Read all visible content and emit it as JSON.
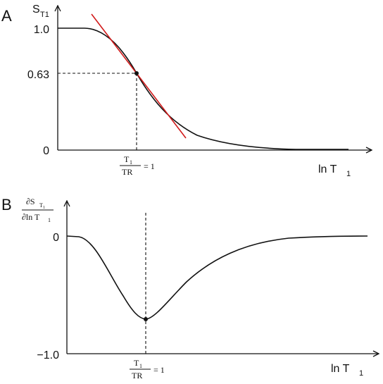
{
  "panel_a": {
    "letter": "A",
    "y_label": "S",
    "y_label_sub": "T1",
    "ticks": {
      "top": "1.0",
      "mid": "0.63",
      "bottom": "0"
    },
    "x_label": "ln T",
    "x_label_sub": "1",
    "marker": {
      "num": "T",
      "num_sub": "1",
      "den": "TR",
      "eq": "= 1"
    }
  },
  "panel_b": {
    "letter": "B",
    "y_label_num": "∂S",
    "y_label_num_sub": "T",
    "y_label_num_subsub": "1",
    "y_label_den": "∂ln T",
    "y_label_den_sub": "1",
    "ticks": {
      "top": "0",
      "bottom": "−1.0"
    },
    "x_label": "ln T",
    "x_label_sub": "1",
    "marker": {
      "num": "T",
      "num_sub": "1",
      "den": "TR",
      "eq": "= 1"
    }
  },
  "colors": {
    "curve": "#111111",
    "tangent": "#d11a1a"
  },
  "chart_data": [
    {
      "type": "line",
      "x_scale": "log",
      "ylim": [
        0,
        1.0
      ],
      "y_ticks": [
        0,
        0.63,
        1.0
      ],
      "series": [
        {
          "x": [
            0.05,
            0.15,
            0.3,
            0.5,
            1,
            2,
            3,
            5,
            10,
            20,
            50
          ],
          "y": [
            1.0,
            0.999,
            0.96,
            0.86,
            0.63,
            0.39,
            0.28,
            0.15,
            0.04,
            0.01,
            0.0
          ]
        }
      ],
      "annotations": [
        "tangent line at T1/TR = 1",
        "dashed guides at (1, 0.63)"
      ]
    },
    {
      "type": "line",
      "x_scale": "log",
      "ylim": [
        -1.0,
        0
      ],
      "y_ticks": [
        -1.0,
        0
      ],
      "series": [
        {
          "x": [
            0.1,
            0.2,
            0.4,
            0.6,
            1,
            1.5,
            2.5,
            4,
            8,
            20,
            50
          ],
          "y": [
            0.0,
            -0.02,
            -0.2,
            -0.45,
            -0.7,
            -0.55,
            -0.32,
            -0.14,
            -0.04,
            -0.01,
            0.0
          ]
        }
      ],
      "annotations": [
        "minimum at T1/TR = 1"
      ]
    }
  ]
}
